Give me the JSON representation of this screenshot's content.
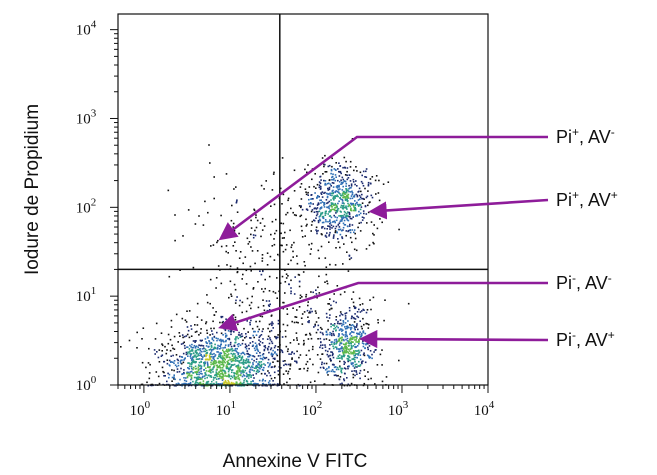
{
  "chart_data": {
    "type": "scatter",
    "title": "",
    "xlabel": "Annexine V FITC",
    "ylabel": "Iodure de Propidium",
    "x_scale": "log",
    "y_scale": "log",
    "xlim": [
      0.5,
      10000
    ],
    "ylim": [
      1,
      15000
    ],
    "x_ticks": [
      {
        "base": "10",
        "exp": "0"
      },
      {
        "base": "10",
        "exp": "1"
      },
      {
        "base": "10",
        "exp": "2"
      },
      {
        "base": "10",
        "exp": "3"
      },
      {
        "base": "10",
        "exp": "4"
      }
    ],
    "y_ticks": [
      {
        "base": "10",
        "exp": "0"
      },
      {
        "base": "10",
        "exp": "1"
      },
      {
        "base": "10",
        "exp": "2"
      },
      {
        "base": "10",
        "exp": "3"
      },
      {
        "base": "10",
        "exp": "4"
      }
    ],
    "quadrant_gate": {
      "x": 38,
      "y": 20
    },
    "populations": [
      {
        "center": [
          8,
          1.7
        ],
        "spread": [
          0.38,
          0.22
        ],
        "count": 1400
      },
      {
        "center": [
          230,
          2.8
        ],
        "spread": [
          0.17,
          0.22
        ],
        "count": 520
      },
      {
        "center": [
          190,
          110
        ],
        "spread": [
          0.2,
          0.22
        ],
        "count": 650
      },
      {
        "center": [
          25,
          55
        ],
        "spread": [
          0.42,
          0.3
        ],
        "count": 170
      },
      {
        "center": [
          45,
          6
        ],
        "spread": [
          0.5,
          0.28
        ],
        "count": 260
      }
    ],
    "density_colors": [
      "#1b2a6e",
      "#2f6fb5",
      "#2a9c86",
      "#5cb84a",
      "#c8c828",
      "#e8a020"
    ],
    "annotations": [
      {
        "base": "Pi",
        "sup1": "+",
        "mid": ", AV",
        "sup2": "-",
        "target": [
          8,
          45
        ]
      },
      {
        "base": "Pi",
        "sup1": "+",
        "mid": ", AV",
        "sup2": "+",
        "target": [
          450,
          90
        ]
      },
      {
        "base": "Pi",
        "sup1": "-",
        "mid": ", AV",
        "sup2": "-",
        "target": [
          8,
          4.5
        ]
      },
      {
        "base": "Pi",
        "sup1": "-",
        "mid": ", AV",
        "sup2": "+",
        "target": [
          350,
          3.3
        ]
      }
    ],
    "annotation_color": "#8e1c9a"
  }
}
